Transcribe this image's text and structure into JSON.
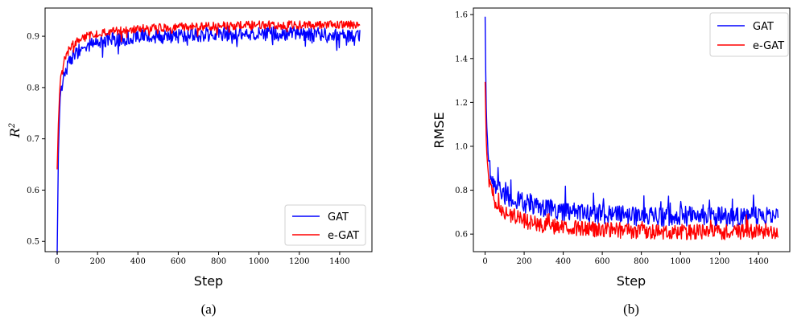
{
  "colors": {
    "GAT": "#0000ff",
    "e-GAT": "#ff0000"
  },
  "chart_data": [
    {
      "type": "line",
      "panel_label": "(a)",
      "xlabel": "Step",
      "ylabel_base": "R",
      "ylabel_sup": "2",
      "xlim": [
        -60,
        1560
      ],
      "ylim": [
        0.48,
        0.955
      ],
      "xticks": [
        0,
        200,
        400,
        600,
        800,
        1000,
        1200,
        1400
      ],
      "yticks": [
        0.5,
        0.6,
        0.7,
        0.8,
        0.9
      ],
      "ytick_labels": [
        "0.5",
        "0.6",
        "0.7",
        "0.8",
        "0.9"
      ],
      "legend": "lower right",
      "series": [
        {
          "name": "GAT",
          "x": [
            0,
            5,
            10,
            15,
            20,
            30,
            40,
            60,
            80,
            100,
            150,
            200,
            300,
            400,
            600,
            800,
            1000,
            1200,
            1400,
            1500
          ],
          "values": [
            0.475,
            0.65,
            0.73,
            0.78,
            0.8,
            0.82,
            0.83,
            0.85,
            0.86,
            0.87,
            0.88,
            0.89,
            0.895,
            0.9,
            0.9,
            0.905,
            0.905,
            0.905,
            0.9,
            0.9
          ]
        },
        {
          "name": "e-GAT",
          "x": [
            0,
            5,
            10,
            15,
            20,
            30,
            40,
            60,
            80,
            100,
            150,
            200,
            300,
            400,
            600,
            800,
            1000,
            1200,
            1400,
            1500
          ],
          "values": [
            0.64,
            0.72,
            0.77,
            0.81,
            0.83,
            0.85,
            0.86,
            0.875,
            0.885,
            0.89,
            0.9,
            0.905,
            0.91,
            0.915,
            0.918,
            0.92,
            0.922,
            0.922,
            0.922,
            0.922
          ]
        }
      ]
    },
    {
      "type": "line",
      "panel_label": "(b)",
      "xlabel": "Step",
      "ylabel": "RMSE",
      "xlim": [
        -60,
        1560
      ],
      "ylim": [
        0.52,
        1.63
      ],
      "xticks": [
        0,
        200,
        400,
        600,
        800,
        1000,
        1200,
        1400
      ],
      "yticks": [
        0.6,
        0.8,
        1.0,
        1.2,
        1.4,
        1.6
      ],
      "ytick_labels": [
        "0.6",
        "0.8",
        "1.0",
        "1.2",
        "1.4",
        "1.6"
      ],
      "legend": "upper right",
      "series": [
        {
          "name": "GAT",
          "x": [
            0,
            5,
            10,
            15,
            20,
            30,
            40,
            60,
            80,
            100,
            150,
            200,
            300,
            400,
            600,
            800,
            1000,
            1200,
            1400,
            1500
          ],
          "values": [
            1.59,
            1.2,
            1.05,
            0.97,
            0.92,
            0.88,
            0.85,
            0.82,
            0.8,
            0.78,
            0.76,
            0.74,
            0.72,
            0.7,
            0.69,
            0.68,
            0.68,
            0.68,
            0.68,
            0.68
          ]
        },
        {
          "name": "e-GAT",
          "x": [
            0,
            5,
            10,
            15,
            20,
            30,
            40,
            60,
            80,
            100,
            150,
            200,
            300,
            400,
            600,
            800,
            1000,
            1200,
            1400,
            1500
          ],
          "values": [
            1.3,
            1.05,
            0.95,
            0.88,
            0.84,
            0.8,
            0.77,
            0.74,
            0.72,
            0.7,
            0.68,
            0.66,
            0.64,
            0.63,
            0.62,
            0.61,
            0.61,
            0.61,
            0.61,
            0.61
          ]
        }
      ]
    }
  ]
}
